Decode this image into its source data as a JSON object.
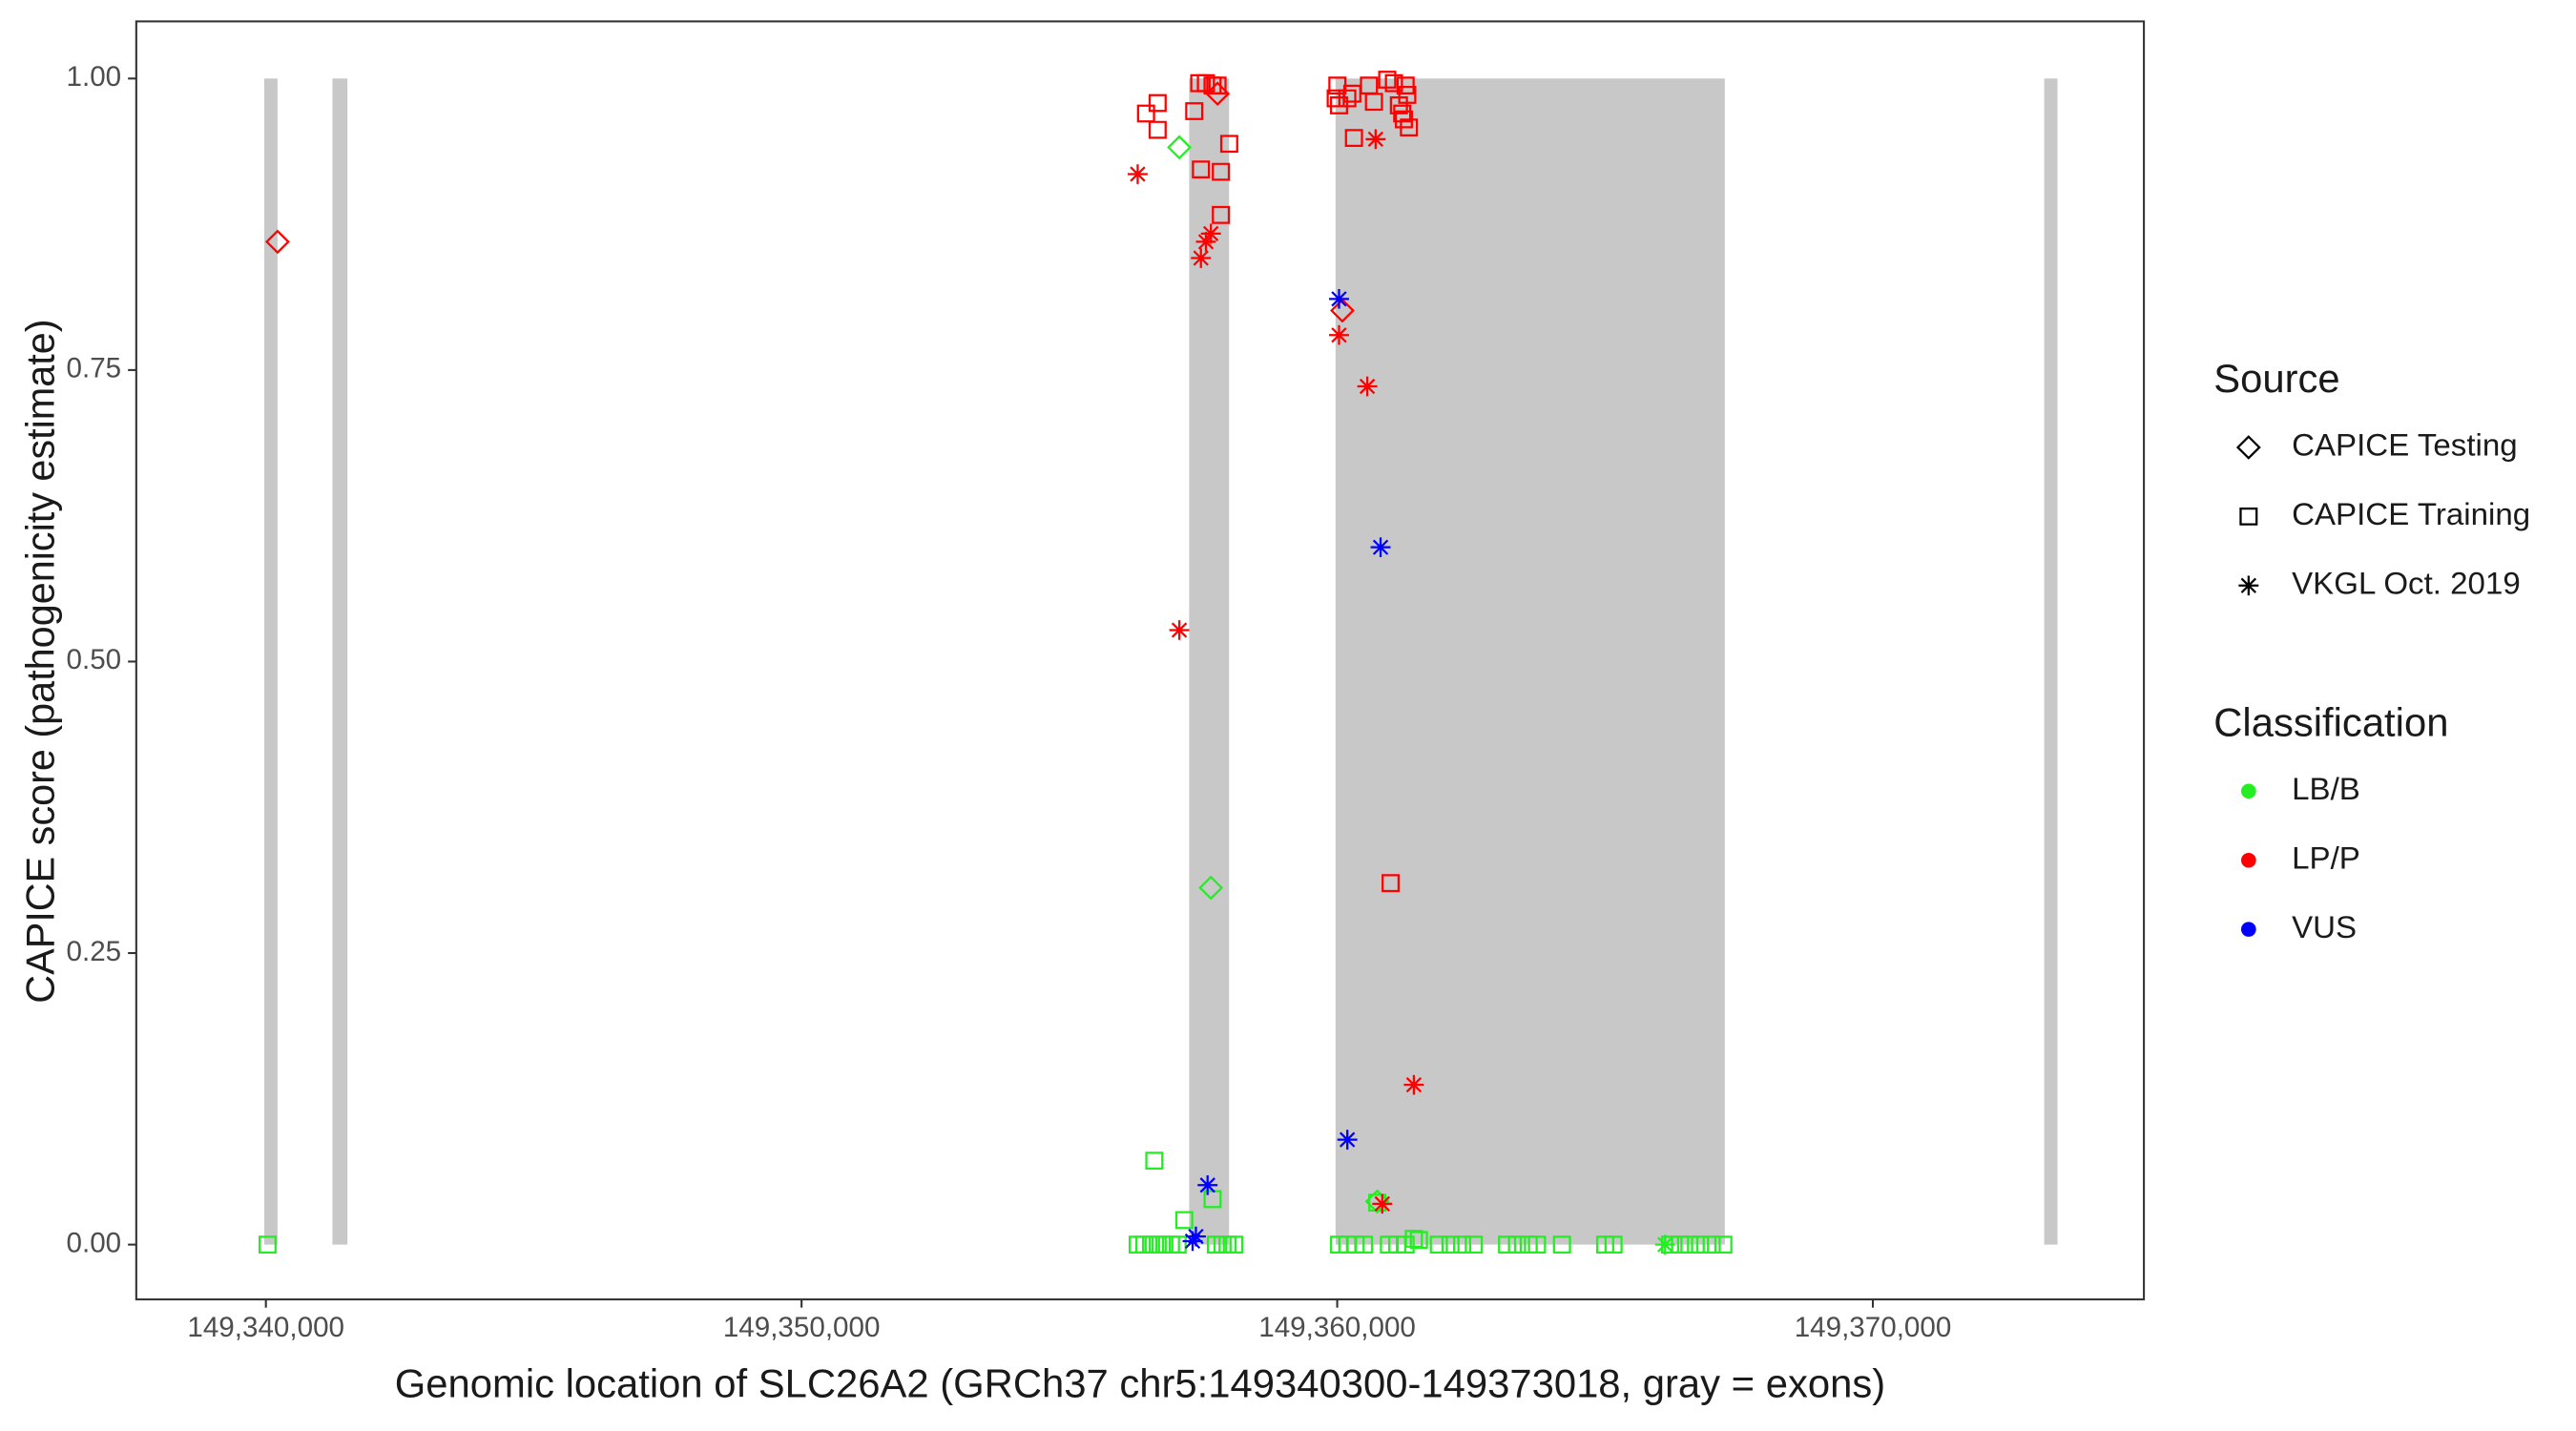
{
  "chart_data": {
    "type": "scatter",
    "xlabel": "Genomic location of SLC26A2 (GRCh37 chr5:149340300-149373018, gray = exons)",
    "ylabel": "CAPICE score (pathogenicity estimate)",
    "xlim": [
      149337580,
      149375060
    ],
    "ylim": [
      -0.047,
      1.049
    ],
    "xticks": [
      {
        "value": 149340000,
        "label": "149,340,000"
      },
      {
        "value": 149350000,
        "label": "149,350,000"
      },
      {
        "value": 149360000,
        "label": "149,360,000"
      },
      {
        "value": 149370000,
        "label": "149,370,000"
      }
    ],
    "yticks": [
      {
        "value": 0,
        "label": "0.00"
      },
      {
        "value": 0.25,
        "label": "0.25"
      },
      {
        "value": 0.5,
        "label": "0.50"
      },
      {
        "value": 0.75,
        "label": "0.75"
      },
      {
        "value": 1,
        "label": "1.00"
      }
    ],
    "exons": [
      [
        149339969,
        149340217
      ],
      [
        149341242,
        149341522
      ],
      [
        149357236,
        149357981
      ],
      [
        149359969,
        149367236
      ],
      [
        149373199,
        149373447
      ]
    ],
    "exon_color": "#c8c8c8",
    "legend": {
      "source": {
        "title": "Source",
        "items": [
          {
            "name": "CAPICE Testing",
            "shape": "diamond"
          },
          {
            "name": "CAPICE Training",
            "shape": "square"
          },
          {
            "name": "VKGL Oct. 2019",
            "shape": "asterisk"
          }
        ]
      },
      "classification": {
        "title": "Classification",
        "items": [
          {
            "name": "LB/B",
            "color": "#22ee22"
          },
          {
            "name": "LP/P",
            "color": "#ff0000"
          },
          {
            "name": "VUS",
            "color": "#0000ff"
          }
        ]
      }
    },
    "series": [
      {
        "source": "CAPICE Testing",
        "classification": "LP/P",
        "x": [
          149340217,
          149357766,
          149360096
        ],
        "values": [
          0.86,
          0.987,
          0.801
        ]
      },
      {
        "source": "CAPICE Testing",
        "classification": "LB/B",
        "x": [
          149357052,
          149357642,
          149360748
        ],
        "values": [
          0.941,
          0.306,
          0.037
        ]
      },
      {
        "source": "CAPICE Training",
        "classification": "LP/P",
        "x": [
          149356431,
          149356648,
          149356648,
          149357331,
          149357425,
          149357549,
          149357673,
          149357766,
          149357456,
          149357828,
          149357984,
          149357828,
          149360003,
          149359972,
          149360034,
          149360189,
          149360282,
          149360593,
          149360686,
          149360934,
          149361059,
          149361277,
          149361308,
          149361152,
          149361214,
          149361245,
          149361339,
          149360313,
          149360997
        ],
        "values": [
          0.97,
          0.979,
          0.956,
          0.972,
          0.996,
          0.996,
          0.994,
          0.994,
          0.922,
          0.92,
          0.944,
          0.883,
          0.994,
          0.983,
          0.977,
          0.983,
          0.987,
          0.994,
          0.98,
          0.999,
          0.996,
          0.994,
          0.986,
          0.977,
          0.97,
          0.965,
          0.958,
          0.949,
          0.31
        ]
      },
      {
        "source": "CAPICE Training",
        "classification": "LB/B",
        "x": [
          149340031,
          149356586,
          149357145,
          149357673,
          149356275,
          149356400,
          149356524,
          149356648,
          149356772,
          149356897,
          149357021,
          149357735,
          149357859,
          149357953,
          149358077,
          149360034,
          149360189,
          149360344,
          149360500,
          149360966,
          149361121,
          149361277,
          149361431,
          149361525,
          149361897,
          149362115,
          149362332,
          149362550,
          149363171,
          149363357,
          149363575,
          149363730,
          149364196,
          149365003,
          149365159,
          149366215,
          149366401,
          149366575,
          149366774,
          149366991,
          149367209,
          149360748
        ],
        "values": [
          0,
          0.072,
          0.021,
          0.039,
          0,
          0,
          0,
          0,
          0,
          0,
          0,
          0,
          0,
          0,
          0,
          0,
          0,
          0,
          0,
          0,
          0,
          0,
          0.005,
          0.004,
          0,
          0,
          0,
          0,
          0,
          0,
          0,
          0,
          0,
          0,
          0,
          0,
          0,
          0,
          0,
          0,
          0,
          0.036
        ]
      },
      {
        "source": "VKGL Oct. 2019",
        "classification": "LP/P",
        "x": [
          149356275,
          149357456,
          149357549,
          149357642,
          149357052,
          149360034,
          149360562,
          149360717,
          149361431,
          149360841
        ],
        "values": [
          0.918,
          0.846,
          0.86,
          0.867,
          0.527,
          0.78,
          0.736,
          0.948,
          0.137,
          0.035
        ]
      },
      {
        "source": "VKGL Oct. 2019",
        "classification": "VUS",
        "x": [
          149360034,
          149360810,
          149360189,
          149357580,
          149357362,
          149357300
        ],
        "values": [
          0.811,
          0.598,
          0.09,
          0.051,
          0.007,
          0.003
        ]
      },
      {
        "source": "VKGL Oct. 2019",
        "classification": "LB/B",
        "x": [
          149366121
        ],
        "values": [
          0
        ]
      }
    ]
  }
}
